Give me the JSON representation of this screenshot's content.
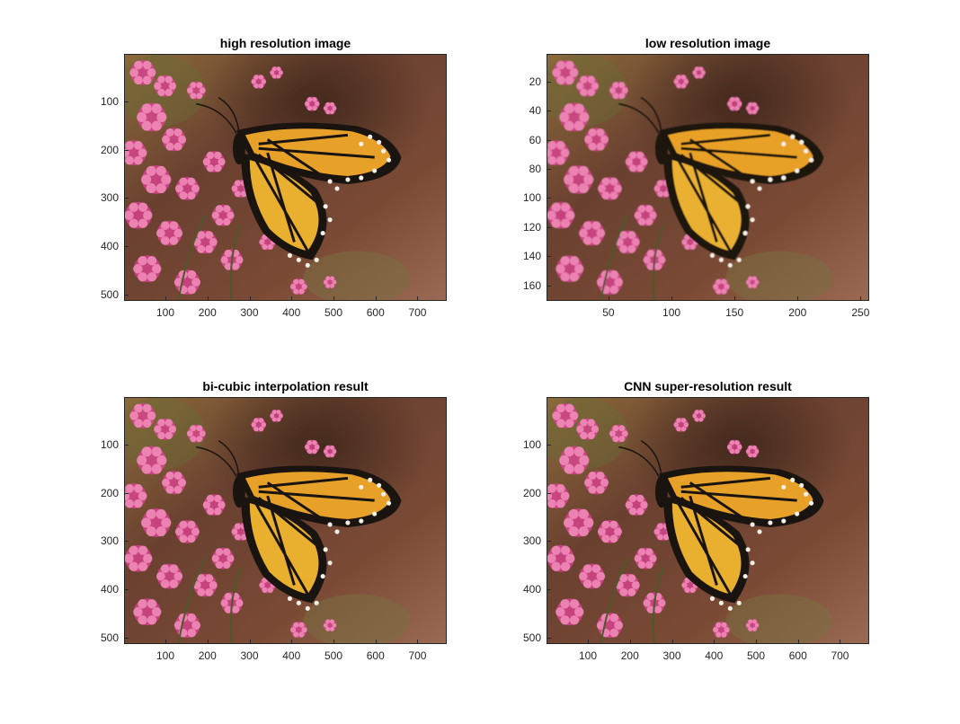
{
  "figure": {
    "panels": [
      {
        "title": "high resolution image",
        "xlim": [
          0.5,
          768.5
        ],
        "ylim": [
          0.5,
          512.5
        ],
        "xticks": [
          100,
          200,
          300,
          400,
          500,
          600,
          700
        ],
        "yticks": [
          100,
          200,
          300,
          400,
          500
        ],
        "image": "monarch-butterfly-on-pink-flowers",
        "pixelated": false
      },
      {
        "title": "low resolution image",
        "xlim": [
          0.5,
          256.5
        ],
        "ylim": [
          0.5,
          170.5
        ],
        "xticks": [
          50,
          100,
          150,
          200,
          250
        ],
        "yticks": [
          20,
          40,
          60,
          80,
          100,
          120,
          140,
          160
        ],
        "image": "monarch-butterfly-on-pink-flowers",
        "pixelated": true
      },
      {
        "title": "bi-cubic interpolation result",
        "xlim": [
          0.5,
          768.5
        ],
        "ylim": [
          0.5,
          512.5
        ],
        "xticks": [
          100,
          200,
          300,
          400,
          500,
          600,
          700
        ],
        "yticks": [
          100,
          200,
          300,
          400,
          500
        ],
        "image": "monarch-butterfly-on-pink-flowers",
        "pixelated": false
      },
      {
        "title": "CNN super-resolution result",
        "xlim": [
          0.5,
          768.5
        ],
        "ylim": [
          0.5,
          512.5
        ],
        "xticks": [
          100,
          200,
          300,
          400,
          500,
          600,
          700
        ],
        "yticks": [
          100,
          200,
          300,
          400,
          500
        ],
        "image": "monarch-butterfly-on-pink-flowers",
        "pixelated": false
      }
    ],
    "colors": {
      "background": "#ffffff",
      "axis": "#262626",
      "photo_background": "#7a4a35",
      "flowers": "#d6438c",
      "wing_orange": "#e8a128",
      "wing_black": "#1a1410"
    }
  }
}
